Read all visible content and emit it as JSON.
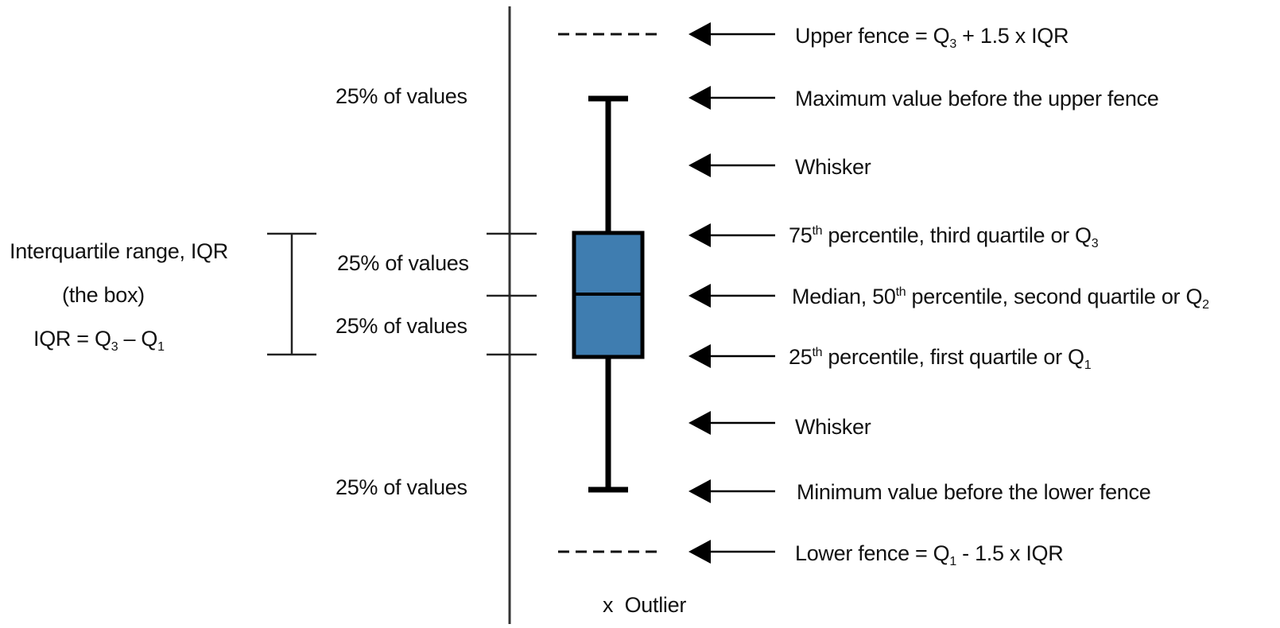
{
  "left_labels": {
    "iqr_title": "Interquartile range, IQR",
    "iqr_subtitle": "(the box)",
    "iqr_formula": {
      "lhs": "IQR = Q",
      "sub_a": "3",
      "mid": " – Q",
      "sub_b": "1"
    }
  },
  "percent_labels": [
    "25% of values",
    "25% of values",
    "25% of values",
    "25% of values"
  ],
  "right_labels": {
    "upper_fence": {
      "pre": "Upper fence = Q",
      "sub": "3",
      "post": " + 1.5 x IQR"
    },
    "max_value": "Maximum value before the upper fence",
    "whisker_top": "Whisker",
    "q3": {
      "pre": "75",
      "sup": "th",
      "post": " percentile, third quartile or Q",
      "sub": "3"
    },
    "median": {
      "pre": "Median, 50",
      "sup": "th",
      "post": " percentile, second quartile or Q",
      "sub": "2"
    },
    "q1": {
      "pre": "25",
      "sup": "th",
      "post": " percentile, first quartile or Q",
      "sub": "1"
    },
    "whisker_bottom": "Whisker",
    "min_value": "Minimum value before the lower fence",
    "lower_fence": {
      "pre": "Lower fence = Q",
      "sub": "1",
      "post": " - 1.5 x IQR"
    }
  },
  "outlier_label": "x  Outlier",
  "colors": {
    "box_fill": "#3f7db0",
    "ink": "#111111"
  }
}
